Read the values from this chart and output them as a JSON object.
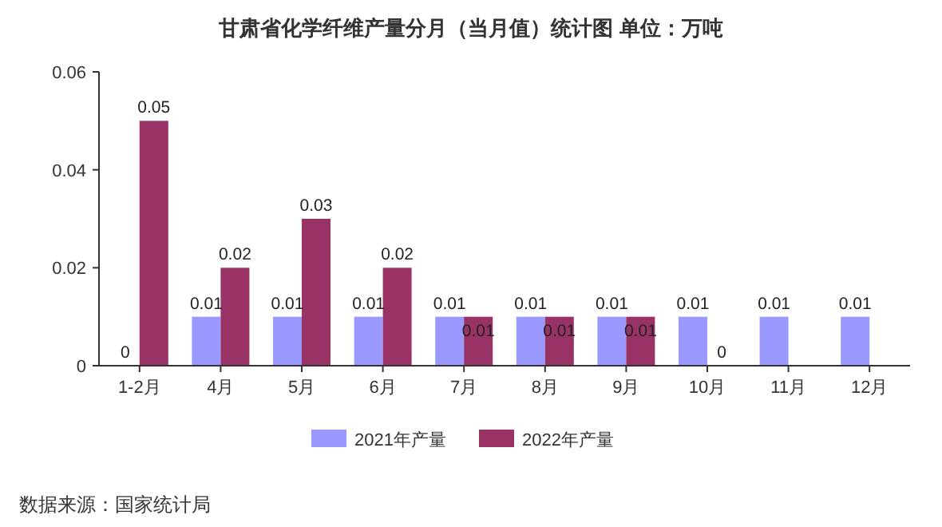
{
  "chart_data": {
    "type": "bar",
    "title": "甘肃省化学纤维产量分月（当月值）统计图 单位：万吨",
    "categories": [
      "1-2月",
      "4月",
      "5月",
      "6月",
      "7月",
      "8月",
      "9月",
      "10月",
      "11月",
      "12月"
    ],
    "series": [
      {
        "name": "2021年产量",
        "color": "#9999ff",
        "values": [
          0,
          0.01,
          0.01,
          0.01,
          0.01,
          0.01,
          0.01,
          0.01,
          0.01,
          0.01
        ]
      },
      {
        "name": "2022年产量",
        "color": "#993366",
        "values": [
          0.05,
          0.02,
          0.03,
          0.02,
          0.01,
          0.01,
          0.01,
          0,
          null,
          null
        ]
      }
    ],
    "ylim": [
      0,
      0.06
    ],
    "yticks": [
      0,
      0.02,
      0.04,
      0.06
    ],
    "grid": false,
    "legend": "bottom",
    "data_labels": true,
    "annotations": [
      "数据来源：国家统计局"
    ]
  }
}
